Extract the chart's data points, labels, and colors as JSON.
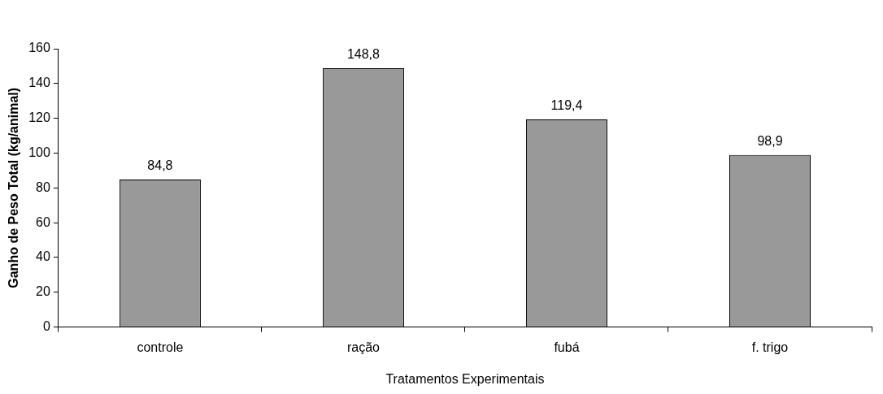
{
  "chart_data": {
    "type": "bar",
    "xlabel": "Tratamentos Experimentais",
    "ylabel": "Ganho de Peso Total (kg/animal)",
    "categories": [
      "controle",
      "ração",
      "fubá",
      "f. trigo"
    ],
    "values": [
      84.8,
      148.8,
      119.4,
      98.9
    ],
    "value_labels": [
      "84,8",
      "148,8",
      "119,4",
      "98,9"
    ],
    "color": "#999999",
    "ylim": [
      0,
      160
    ],
    "yticks": [
      0,
      20,
      40,
      60,
      80,
      100,
      120,
      140,
      160
    ],
    "grid": false,
    "legend": false
  }
}
